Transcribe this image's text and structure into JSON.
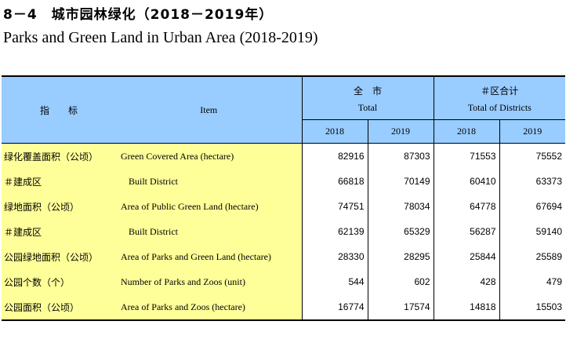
{
  "title": {
    "cn": "8－4　城市园林绿化（2018－2019年）",
    "en": "Parks and Green Land in Urban Area (2018-2019)"
  },
  "header": {
    "indicator_cn": "指　　标",
    "item_en": "Item",
    "total_cn": "全　市",
    "total_en": "Total",
    "districts_cn": "＃区合计",
    "districts_en": "Total of Districts",
    "years": [
      "2018",
      "2019",
      "2018",
      "2019"
    ]
  },
  "rows": [
    {
      "cn": "绿化覆盖面积（公顷）",
      "en": "Green Covered Area (hectare)",
      "values": [
        "82916",
        "87303",
        "71553",
        "75552"
      ]
    },
    {
      "cn": "＃建成区",
      "en": "Built District",
      "values": [
        "66818",
        "70149",
        "60410",
        "63373"
      ]
    },
    {
      "cn": "绿地面积（公顷）",
      "en": "Area of Public Green Land (hectare)",
      "values": [
        "74751",
        "78034",
        "64778",
        "67694"
      ]
    },
    {
      "cn": "＃建成区",
      "en": "Built District",
      "values": [
        "62139",
        "65329",
        "56287",
        "59140"
      ]
    },
    {
      "cn": "公园绿地面积（公顷）",
      "en": "Area of Parks and Green Land (hectare)",
      "values": [
        "28330",
        "28295",
        "25844",
        "25589"
      ]
    },
    {
      "cn": "公园个数（个）",
      "en": "Number of Parks and Zoos (unit)",
      "values": [
        "544",
        "602",
        "428",
        "479"
      ]
    },
    {
      "cn": "公园面积（公顷）",
      "en": "Area of Parks and Zoos  (hectare)",
      "values": [
        "16774",
        "17574",
        "14818",
        "15503"
      ]
    }
  ]
}
